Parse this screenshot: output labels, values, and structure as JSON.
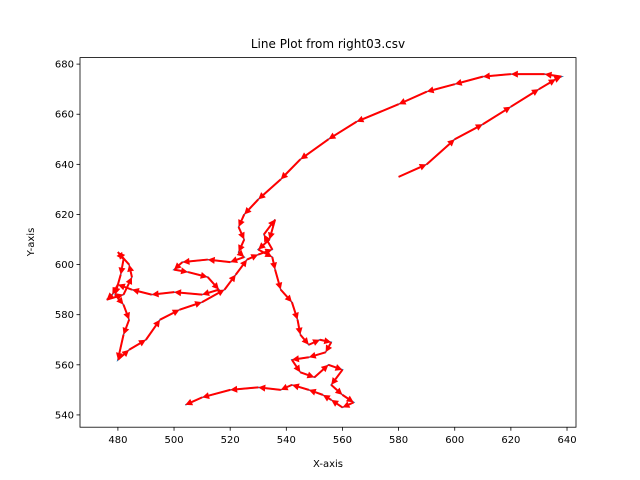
{
  "chart_data": {
    "type": "line",
    "title": "Line Plot from right03.csv",
    "x_label": "X-axis",
    "y_label": "Y-axis",
    "x": [
      580,
      590,
      600,
      610,
      620,
      630,
      636,
      638,
      632,
      620,
      610,
      600,
      590,
      580,
      565,
      555,
      545,
      538,
      530,
      525,
      523,
      525,
      523,
      525,
      520,
      512,
      503,
      500,
      505,
      512,
      516,
      510,
      500,
      492,
      485,
      480,
      478,
      476,
      482,
      485,
      484,
      480,
      482,
      481,
      479,
      482,
      484,
      482,
      480,
      484,
      490,
      495,
      502,
      510,
      518,
      522,
      526,
      530,
      535,
      532,
      536,
      534,
      530,
      535,
      536,
      538,
      542,
      544,
      545,
      548,
      552,
      556,
      554,
      548,
      542,
      545,
      550,
      555,
      560,
      556,
      560,
      564,
      560,
      556,
      553,
      548,
      542,
      538,
      530,
      520,
      510,
      504
    ],
    "values": [
      635,
      640,
      650,
      656,
      663,
      670,
      674,
      675,
      676,
      676,
      675,
      672,
      669,
      664,
      657,
      650,
      642,
      634,
      626,
      620,
      615,
      610,
      605,
      603,
      601,
      602,
      601,
      598,
      597,
      595,
      590,
      588,
      589,
      588,
      590,
      592,
      588,
      586,
      588,
      595,
      600,
      605,
      602,
      596,
      588,
      584,
      578,
      572,
      562,
      566,
      570,
      578,
      582,
      585,
      590,
      596,
      602,
      604,
      606,
      612,
      618,
      610,
      606,
      603,
      598,
      590,
      585,
      578,
      572,
      568,
      570,
      569,
      565,
      563,
      562,
      557,
      555,
      560,
      558,
      552,
      548,
      545,
      543,
      546,
      548,
      550,
      552,
      550,
      551,
      550,
      547,
      544
    ],
    "color": "#1f77b4",
    "arrow_color": "#ff0000",
    "xlim": [
      466.5,
      643.2
    ],
    "xticks": [
      480,
      500,
      520,
      540,
      560,
      580,
      600,
      620,
      640
    ],
    "ylim": [
      535.1,
      682.6
    ],
    "yticks": [
      540,
      560,
      580,
      600,
      620,
      640,
      660,
      680
    ]
  }
}
